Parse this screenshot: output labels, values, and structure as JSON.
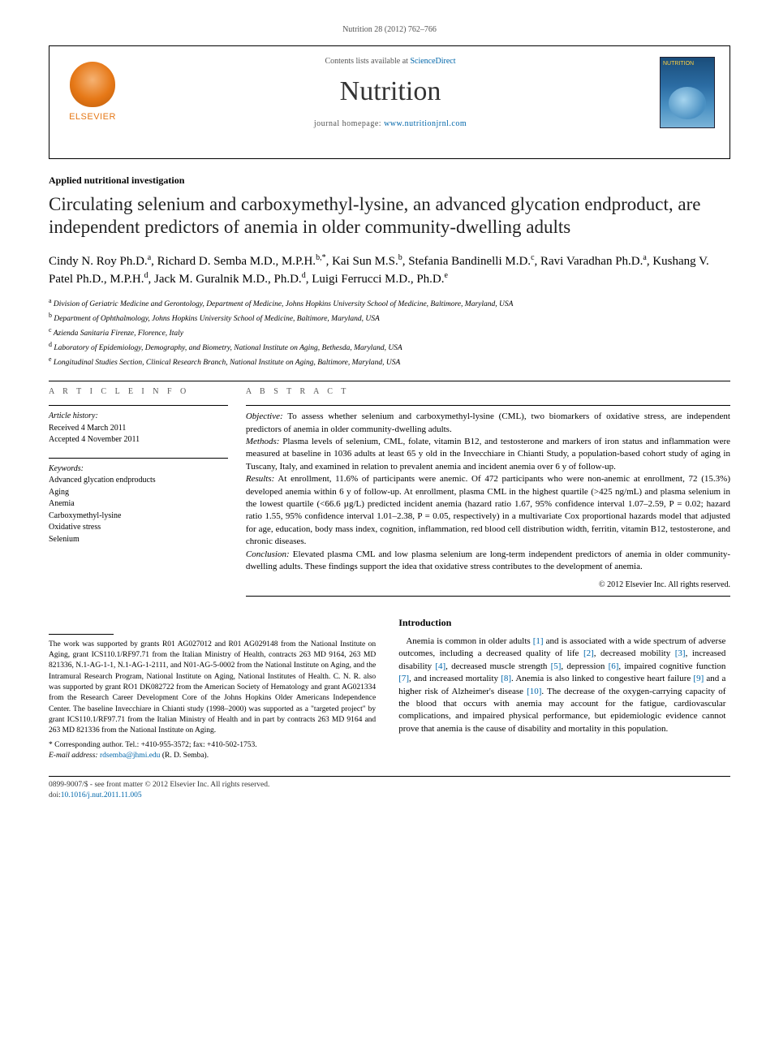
{
  "header": {
    "citation": "Nutrition 28 (2012) 762–766",
    "contents_prefix": "Contents lists available at ",
    "contents_link": "ScienceDirect",
    "journal_name": "Nutrition",
    "homepage_prefix": "journal homepage: ",
    "homepage_url": "www.nutritionjrnl.com",
    "publisher_label": "ELSEVIER",
    "cover_label": "NUTRITION"
  },
  "article": {
    "type": "Applied nutritional investigation",
    "title": "Circulating selenium and carboxymethyl-lysine, an advanced glycation endproduct, are independent predictors of anemia in older community-dwelling adults",
    "authors_html": "Cindy N. Roy Ph.D.<sup>a</sup>, Richard D. Semba M.D., M.P.H.<sup>b,*</sup>, Kai Sun M.S.<sup>b</sup>, Stefania Bandinelli M.D.<sup>c</sup>, Ravi Varadhan Ph.D.<sup>a</sup>, Kushang V. Patel Ph.D., M.P.H.<sup>d</sup>, Jack M. Guralnik M.D., Ph.D.<sup>d</sup>, Luigi Ferrucci M.D., Ph.D.<sup>e</sup>",
    "affiliations": [
      "a Division of Geriatric Medicine and Gerontology, Department of Medicine, Johns Hopkins University School of Medicine, Baltimore, Maryland, USA",
      "b Department of Ophthalmology, Johns Hopkins University School of Medicine, Baltimore, Maryland, USA",
      "c Azienda Sanitaria Firenze, Florence, Italy",
      "d Laboratory of Epidemiology, Demography, and Biometry, National Institute on Aging, Bethesda, Maryland, USA",
      "e Longitudinal Studies Section, Clinical Research Branch, National Institute on Aging, Baltimore, Maryland, USA"
    ]
  },
  "info": {
    "heading": "A R T I C L E   I N F O",
    "history_label": "Article history:",
    "received": "Received 4 March 2011",
    "accepted": "Accepted 4 November 2011",
    "keywords_label": "Keywords:",
    "keywords": [
      "Advanced glycation endproducts",
      "Aging",
      "Anemia",
      "Carboxymethyl-lysine",
      "Oxidative stress",
      "Selenium"
    ]
  },
  "abstract": {
    "heading": "A B S T R A C T",
    "objective_label": "Objective:",
    "objective": " To assess whether selenium and carboxymethyl-lysine (CML), two biomarkers of oxidative stress, are independent predictors of anemia in older community-dwelling adults.",
    "methods_label": "Methods:",
    "methods": " Plasma levels of selenium, CML, folate, vitamin B12, and testosterone and markers of iron status and inflammation were measured at baseline in 1036 adults at least 65 y old in the Invecchiare in Chianti Study, a population-based cohort study of aging in Tuscany, Italy, and examined in relation to prevalent anemia and incident anemia over 6 y of follow-up.",
    "results_label": "Results:",
    "results": " At enrollment, 11.6% of participants were anemic. Of 472 participants who were non-anemic at enrollment, 72 (15.3%) developed anemia within 6 y of follow-up. At enrollment, plasma CML in the highest quartile (>425 ng/mL) and plasma selenium in the lowest quartile (<66.6 µg/L) predicted incident anemia (hazard ratio 1.67, 95% confidence interval 1.07–2.59, P = 0.02; hazard ratio 1.55, 95% confidence interval 1.01–2.38, P = 0.05, respectively) in a multivariate Cox proportional hazards model that adjusted for age, education, body mass index, cognition, inflammation, red blood cell distribution width, ferritin, vitamin B12, testosterone, and chronic diseases.",
    "conclusion_label": "Conclusion:",
    "conclusion": " Elevated plasma CML and low plasma selenium are long-term independent predictors of anemia in older community-dwelling adults. These findings support the idea that oxidative stress contributes to the development of anemia.",
    "copyright": "© 2012 Elsevier Inc. All rights reserved."
  },
  "footnotes": {
    "funding": "The work was supported by grants R01 AG027012 and R01 AG029148 from the National Institute on Aging, grant ICS110.1/RF97.71 from the Italian Ministry of Health, contracts 263 MD 9164, 263 MD 821336, N.1-AG-1-1, N.1-AG-1-2111, and N01-AG-5-0002 from the National Institute on Aging, and the Intramural Research Program, National Institute on Aging, National Institutes of Health. C. N. R. also was supported by grant RO1 DK082722 from the American Society of Hematology and grant AG021334 from the Research Career Development Core of the Johns Hopkins Older Americans Independence Center. The baseline Invecchiare in Chianti study (1998–2000) was supported as a \"targeted project\" by grant ICS110.1/RF97.71 from the Italian Ministry of Health and in part by contracts 263 MD 9164 and 263 MD 821336 from the National Institute on Aging.",
    "corresponding_label": "* Corresponding author. Tel.: +410-955-3572; fax: +410-502-1753.",
    "email_label": "E-mail address: ",
    "email": "rdsemba@jhmi.edu",
    "email_suffix": " (R. D. Semba)."
  },
  "intro": {
    "heading": "Introduction",
    "body_html": "Anemia is common in older adults <a>[1]</a> and is associated with a wide spectrum of adverse outcomes, including a decreased quality of life <a>[2]</a>, decreased mobility <a>[3]</a>, increased disability <a>[4]</a>, decreased muscle strength <a>[5]</a>, depression <a>[6]</a>, impaired cognitive function <a>[7]</a>, and increased mortality <a>[8]</a>. Anemia is also linked to congestive heart failure <a>[9]</a> and a higher risk of Alzheimer's disease <a>[10]</a>. The decrease of the oxygen-carrying capacity of the blood that occurs with anemia may account for the fatigue, cardiovascular complications, and impaired physical performance, but epidemiologic evidence cannot prove that anemia is the cause of disability and mortality in this population."
  },
  "footer": {
    "issn_line": "0899-9007/$ - see front matter © 2012 Elsevier Inc. All rights reserved.",
    "doi_prefix": "doi:",
    "doi": "10.1016/j.nut.2011.11.005"
  },
  "colors": {
    "link": "#0066aa",
    "elsevier_orange": "#e67817",
    "text": "#000000",
    "muted": "#555555"
  }
}
